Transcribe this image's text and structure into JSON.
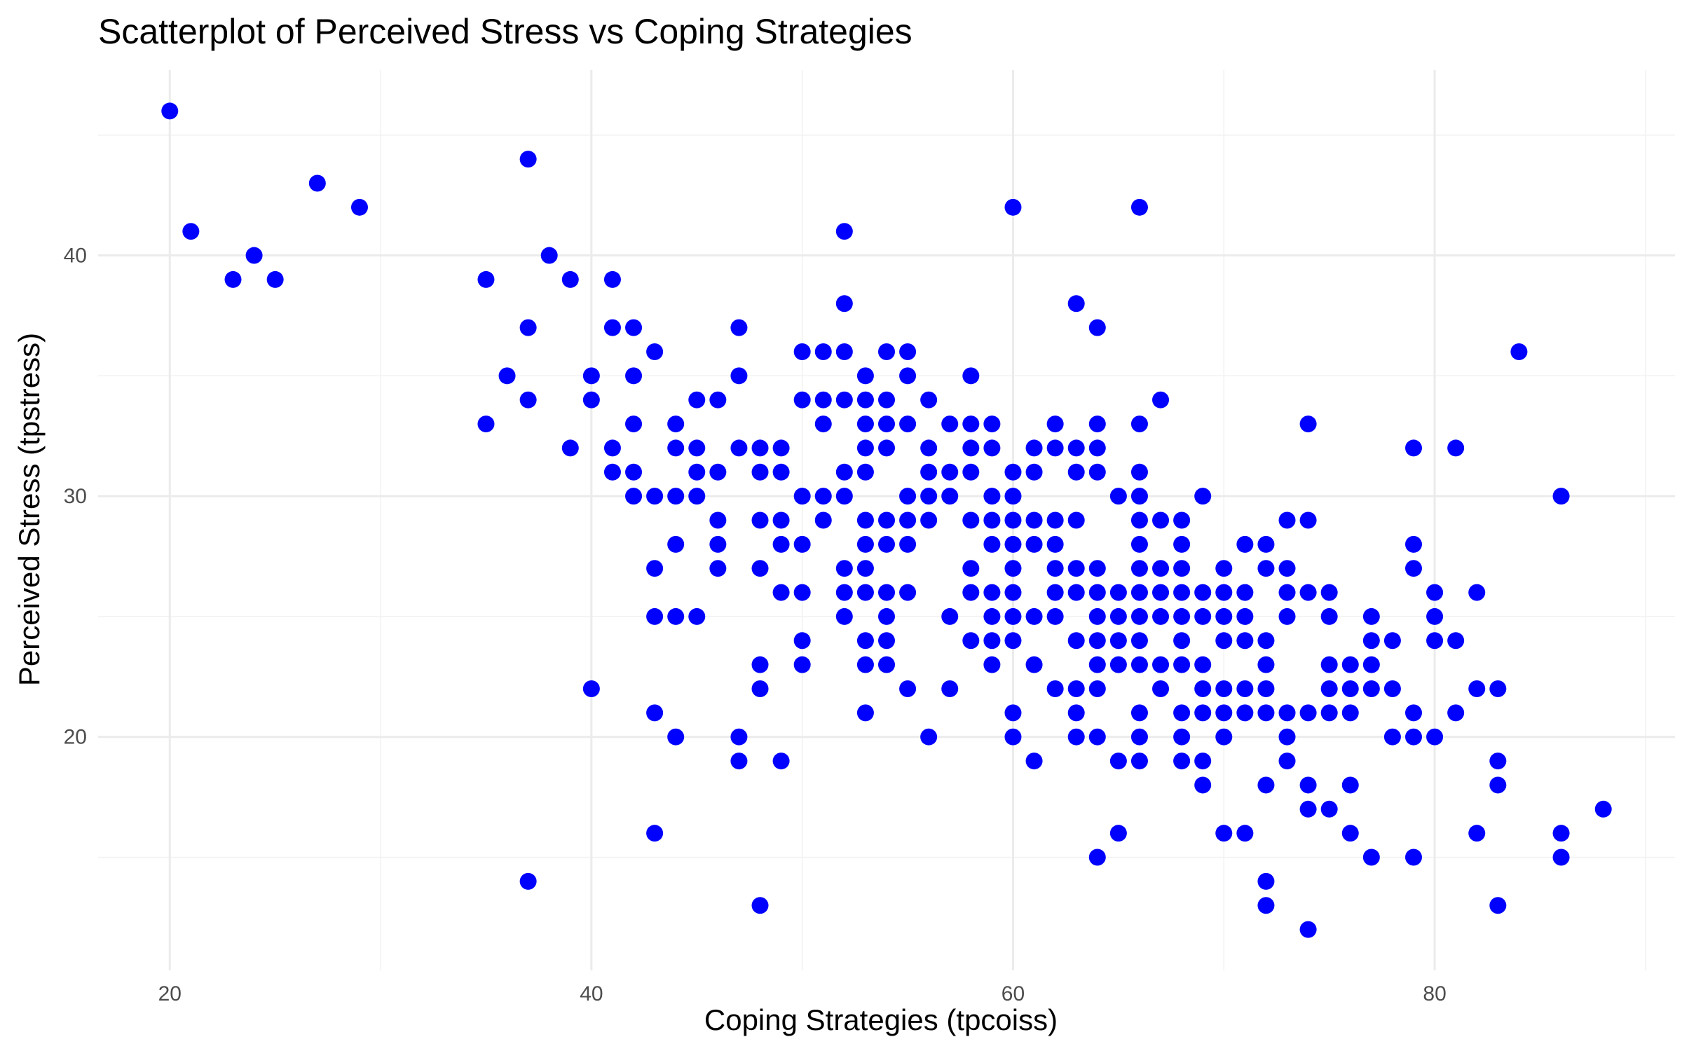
{
  "chart_data": {
    "type": "scatter",
    "title": "Scatterplot of Perceived Stress vs Coping Strategies",
    "xlabel": "Coping Strategies (tpcoiss)",
    "ylabel": "Perceived Stress (tpstress)",
    "xlim": [
      16.6,
      91.4
    ],
    "ylim": [
      10.3,
      47.7
    ],
    "x_ticks": [
      20,
      40,
      60,
      80
    ],
    "y_ticks": [
      20,
      30,
      40
    ],
    "grid": true,
    "point_color": "#0000ff",
    "points": [
      [
        20,
        46
      ],
      [
        21,
        41
      ],
      [
        23,
        39
      ],
      [
        24,
        40
      ],
      [
        25,
        39
      ],
      [
        27,
        43
      ],
      [
        29,
        42
      ],
      [
        35,
        39
      ],
      [
        35,
        33
      ],
      [
        36,
        35
      ],
      [
        37,
        44
      ],
      [
        37,
        37
      ],
      [
        37,
        34
      ],
      [
        37,
        14
      ],
      [
        38,
        40
      ],
      [
        39,
        39
      ],
      [
        39,
        32
      ],
      [
        40,
        35
      ],
      [
        40,
        34
      ],
      [
        40,
        22
      ],
      [
        41,
        39
      ],
      [
        41,
        37
      ],
      [
        41,
        32
      ],
      [
        41,
        31
      ],
      [
        42,
        37
      ],
      [
        42,
        35
      ],
      [
        42,
        33
      ],
      [
        42,
        31
      ],
      [
        42,
        30
      ],
      [
        43,
        36
      ],
      [
        43,
        30
      ],
      [
        43,
        27
      ],
      [
        43,
        25
      ],
      [
        43,
        21
      ],
      [
        43,
        16
      ],
      [
        44,
        33
      ],
      [
        44,
        32
      ],
      [
        44,
        30
      ],
      [
        44,
        28
      ],
      [
        44,
        25
      ],
      [
        44,
        20
      ],
      [
        45,
        34
      ],
      [
        45,
        32
      ],
      [
        45,
        31
      ],
      [
        45,
        30
      ],
      [
        45,
        25
      ],
      [
        46,
        34
      ],
      [
        46,
        31
      ],
      [
        46,
        29
      ],
      [
        46,
        28
      ],
      [
        46,
        27
      ],
      [
        47,
        37
      ],
      [
        47,
        35
      ],
      [
        47,
        32
      ],
      [
        47,
        20
      ],
      [
        47,
        19
      ],
      [
        48,
        32
      ],
      [
        48,
        31
      ],
      [
        48,
        29
      ],
      [
        48,
        27
      ],
      [
        48,
        23
      ],
      [
        48,
        22
      ],
      [
        48,
        13
      ],
      [
        49,
        32
      ],
      [
        49,
        31
      ],
      [
        49,
        29
      ],
      [
        49,
        28
      ],
      [
        49,
        26
      ],
      [
        49,
        19
      ],
      [
        50,
        36
      ],
      [
        50,
        34
      ],
      [
        50,
        30
      ],
      [
        50,
        28
      ],
      [
        50,
        26
      ],
      [
        50,
        24
      ],
      [
        50,
        23
      ],
      [
        51,
        36
      ],
      [
        51,
        34
      ],
      [
        51,
        33
      ],
      [
        51,
        30
      ],
      [
        51,
        29
      ],
      [
        52,
        41
      ],
      [
        52,
        38
      ],
      [
        52,
        36
      ],
      [
        52,
        34
      ],
      [
        52,
        31
      ],
      [
        52,
        30
      ],
      [
        52,
        27
      ],
      [
        52,
        26
      ],
      [
        52,
        25
      ],
      [
        53,
        35
      ],
      [
        53,
        34
      ],
      [
        53,
        33
      ],
      [
        53,
        32
      ],
      [
        53,
        31
      ],
      [
        53,
        29
      ],
      [
        53,
        28
      ],
      [
        53,
        27
      ],
      [
        53,
        26
      ],
      [
        53,
        24
      ],
      [
        53,
        23
      ],
      [
        53,
        21
      ],
      [
        54,
        36
      ],
      [
        54,
        34
      ],
      [
        54,
        33
      ],
      [
        54,
        32
      ],
      [
        54,
        29
      ],
      [
        54,
        28
      ],
      [
        54,
        26
      ],
      [
        54,
        25
      ],
      [
        54,
        24
      ],
      [
        54,
        23
      ],
      [
        55,
        36
      ],
      [
        55,
        35
      ],
      [
        55,
        33
      ],
      [
        55,
        30
      ],
      [
        55,
        29
      ],
      [
        55,
        28
      ],
      [
        55,
        26
      ],
      [
        55,
        22
      ],
      [
        56,
        34
      ],
      [
        56,
        32
      ],
      [
        56,
        31
      ],
      [
        56,
        30
      ],
      [
        56,
        29
      ],
      [
        56,
        20
      ],
      [
        57,
        33
      ],
      [
        57,
        31
      ],
      [
        57,
        30
      ],
      [
        57,
        25
      ],
      [
        57,
        22
      ],
      [
        58,
        35
      ],
      [
        58,
        33
      ],
      [
        58,
        32
      ],
      [
        58,
        31
      ],
      [
        58,
        29
      ],
      [
        58,
        27
      ],
      [
        58,
        26
      ],
      [
        58,
        24
      ],
      [
        59,
        33
      ],
      [
        59,
        32
      ],
      [
        59,
        30
      ],
      [
        59,
        29
      ],
      [
        59,
        28
      ],
      [
        59,
        26
      ],
      [
        59,
        25
      ],
      [
        59,
        24
      ],
      [
        59,
        23
      ],
      [
        60,
        42
      ],
      [
        60,
        31
      ],
      [
        60,
        30
      ],
      [
        60,
        29
      ],
      [
        60,
        28
      ],
      [
        60,
        27
      ],
      [
        60,
        26
      ],
      [
        60,
        25
      ],
      [
        60,
        24
      ],
      [
        60,
        21
      ],
      [
        60,
        20
      ],
      [
        61,
        32
      ],
      [
        61,
        31
      ],
      [
        61,
        29
      ],
      [
        61,
        28
      ],
      [
        61,
        25
      ],
      [
        61,
        23
      ],
      [
        61,
        19
      ],
      [
        62,
        33
      ],
      [
        62,
        32
      ],
      [
        62,
        29
      ],
      [
        62,
        28
      ],
      [
        62,
        27
      ],
      [
        62,
        26
      ],
      [
        62,
        25
      ],
      [
        62,
        22
      ],
      [
        63,
        38
      ],
      [
        63,
        32
      ],
      [
        63,
        31
      ],
      [
        63,
        29
      ],
      [
        63,
        27
      ],
      [
        63,
        26
      ],
      [
        63,
        24
      ],
      [
        63,
        22
      ],
      [
        63,
        21
      ],
      [
        63,
        20
      ],
      [
        64,
        37
      ],
      [
        64,
        33
      ],
      [
        64,
        32
      ],
      [
        64,
        31
      ],
      [
        64,
        27
      ],
      [
        64,
        26
      ],
      [
        64,
        25
      ],
      [
        64,
        24
      ],
      [
        64,
        23
      ],
      [
        64,
        22
      ],
      [
        64,
        20
      ],
      [
        64,
        15
      ],
      [
        65,
        30
      ],
      [
        65,
        26
      ],
      [
        65,
        25
      ],
      [
        65,
        24
      ],
      [
        65,
        23
      ],
      [
        65,
        19
      ],
      [
        65,
        16
      ],
      [
        66,
        42
      ],
      [
        66,
        33
      ],
      [
        66,
        31
      ],
      [
        66,
        30
      ],
      [
        66,
        29
      ],
      [
        66,
        28
      ],
      [
        66,
        27
      ],
      [
        66,
        26
      ],
      [
        66,
        25
      ],
      [
        66,
        24
      ],
      [
        66,
        23
      ],
      [
        66,
        21
      ],
      [
        66,
        20
      ],
      [
        66,
        19
      ],
      [
        67,
        34
      ],
      [
        67,
        29
      ],
      [
        67,
        27
      ],
      [
        67,
        26
      ],
      [
        67,
        25
      ],
      [
        67,
        23
      ],
      [
        67,
        22
      ],
      [
        68,
        29
      ],
      [
        68,
        28
      ],
      [
        68,
        27
      ],
      [
        68,
        26
      ],
      [
        68,
        25
      ],
      [
        68,
        24
      ],
      [
        68,
        23
      ],
      [
        68,
        21
      ],
      [
        68,
        20
      ],
      [
        68,
        19
      ],
      [
        69,
        30
      ],
      [
        69,
        26
      ],
      [
        69,
        25
      ],
      [
        69,
        23
      ],
      [
        69,
        22
      ],
      [
        69,
        21
      ],
      [
        69,
        19
      ],
      [
        69,
        18
      ],
      [
        70,
        27
      ],
      [
        70,
        26
      ],
      [
        70,
        25
      ],
      [
        70,
        24
      ],
      [
        70,
        22
      ],
      [
        70,
        21
      ],
      [
        70,
        20
      ],
      [
        70,
        16
      ],
      [
        71,
        28
      ],
      [
        71,
        26
      ],
      [
        71,
        25
      ],
      [
        71,
        24
      ],
      [
        71,
        22
      ],
      [
        71,
        21
      ],
      [
        71,
        16
      ],
      [
        72,
        28
      ],
      [
        72,
        27
      ],
      [
        72,
        24
      ],
      [
        72,
        23
      ],
      [
        72,
        22
      ],
      [
        72,
        21
      ],
      [
        72,
        18
      ],
      [
        72,
        14
      ],
      [
        72,
        13
      ],
      [
        73,
        29
      ],
      [
        73,
        27
      ],
      [
        73,
        26
      ],
      [
        73,
        25
      ],
      [
        73,
        21
      ],
      [
        73,
        20
      ],
      [
        73,
        19
      ],
      [
        74,
        33
      ],
      [
        74,
        29
      ],
      [
        74,
        26
      ],
      [
        74,
        21
      ],
      [
        74,
        18
      ],
      [
        74,
        17
      ],
      [
        74,
        12
      ],
      [
        75,
        26
      ],
      [
        75,
        25
      ],
      [
        75,
        23
      ],
      [
        75,
        22
      ],
      [
        75,
        21
      ],
      [
        75,
        17
      ],
      [
        76,
        23
      ],
      [
        76,
        22
      ],
      [
        76,
        21
      ],
      [
        76,
        18
      ],
      [
        76,
        16
      ],
      [
        77,
        25
      ],
      [
        77,
        24
      ],
      [
        77,
        23
      ],
      [
        77,
        22
      ],
      [
        77,
        15
      ],
      [
        78,
        24
      ],
      [
        78,
        22
      ],
      [
        78,
        20
      ],
      [
        79,
        32
      ],
      [
        79,
        28
      ],
      [
        79,
        27
      ],
      [
        79,
        21
      ],
      [
        79,
        20
      ],
      [
        79,
        15
      ],
      [
        80,
        26
      ],
      [
        80,
        25
      ],
      [
        80,
        24
      ],
      [
        80,
        20
      ],
      [
        81,
        32
      ],
      [
        81,
        24
      ],
      [
        81,
        21
      ],
      [
        82,
        26
      ],
      [
        82,
        22
      ],
      [
        82,
        16
      ],
      [
        83,
        22
      ],
      [
        83,
        19
      ],
      [
        83,
        18
      ],
      [
        83,
        13
      ],
      [
        84,
        36
      ],
      [
        86,
        30
      ],
      [
        86,
        16
      ],
      [
        86,
        15
      ],
      [
        88,
        17
      ]
    ]
  }
}
